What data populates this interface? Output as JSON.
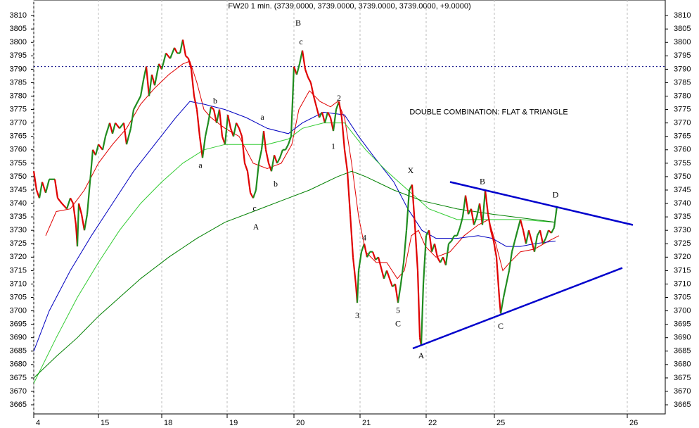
{
  "chart_data": {
    "type": "line",
    "title": "FW20 1 min. (3739.0000, 3739.0000, 3739.0000, 3739.0000, +9.0000)",
    "xlim": [
      48,
      946
    ],
    "ylim": [
      3661.6,
      3815.8
    ],
    "xticks": [
      {
        "value": 48,
        "label": "4"
      },
      {
        "value": 140,
        "label": "15"
      },
      {
        "value": 230,
        "label": "18"
      },
      {
        "value": 323,
        "label": "19"
      },
      {
        "value": 418,
        "label": "20"
      },
      {
        "value": 512,
        "label": "21"
      },
      {
        "value": 606,
        "label": "22"
      },
      {
        "value": 703,
        "label": "25"
      },
      {
        "value": 892,
        "label": "26"
      }
    ],
    "yticks": [
      3665,
      3670,
      3675,
      3680,
      3685,
      3690,
      3695,
      3700,
      3705,
      3710,
      3715,
      3720,
      3725,
      3730,
      3735,
      3740,
      3745,
      3750,
      3755,
      3760,
      3765,
      3770,
      3775,
      3780,
      3785,
      3790,
      3795,
      3800,
      3805,
      3810
    ],
    "grid": true,
    "up_color": "#1f8c1f",
    "down_color": "#e00000",
    "price": {
      "x": [
        48,
        52,
        56,
        60,
        65,
        70,
        78,
        82,
        88,
        95,
        100,
        104,
        108,
        110,
        112,
        116,
        120,
        124,
        128,
        132,
        136,
        140,
        146,
        150,
        156,
        160,
        164,
        170,
        176,
        180,
        186,
        190,
        196,
        200,
        204,
        208,
        212,
        216,
        220,
        226,
        230,
        236,
        242,
        248,
        252,
        256,
        260,
        264,
        268,
        272,
        276,
        280,
        284,
        288,
        292,
        296,
        300,
        304,
        308,
        312,
        316,
        320,
        324,
        328,
        332,
        336,
        340,
        344,
        348,
        352,
        356,
        360,
        364,
        368,
        372,
        375,
        378,
        382,
        386,
        390,
        394,
        398,
        402,
        406,
        410,
        414,
        418,
        422,
        426,
        430,
        434,
        438,
        442,
        446,
        450,
        454,
        458,
        462,
        466,
        470,
        474,
        478,
        482,
        486,
        490,
        494,
        498,
        502,
        506,
        508,
        510,
        514,
        518,
        522,
        526,
        530,
        534,
        538,
        542,
        546,
        550,
        554,
        558,
        562,
        566,
        570,
        574,
        578,
        582,
        586,
        590,
        594,
        597,
        599,
        602,
        606,
        610,
        614,
        618,
        622,
        626,
        630,
        634,
        638,
        642,
        646,
        650,
        654,
        658,
        662,
        666,
        670,
        674,
        678,
        682,
        686,
        690,
        694,
        698,
        702,
        706,
        710,
        712,
        716,
        720,
        724,
        728,
        732,
        736,
        740,
        744,
        748,
        752,
        756,
        760,
        764,
        768,
        772,
        776,
        780,
        784,
        788,
        792
      ],
      "values": [
        3752,
        3745,
        3742,
        3748,
        3744,
        3749,
        3749,
        3742,
        3740,
        3738,
        3742,
        3740,
        3732,
        3724,
        3740,
        3736,
        3730,
        3736,
        3748,
        3760,
        3758,
        3762,
        3760,
        3765,
        3770,
        3766,
        3770,
        3768,
        3770,
        3762,
        3768,
        3775,
        3778,
        3780,
        3786,
        3791,
        3780,
        3788,
        3784,
        3792,
        3790,
        3796,
        3794,
        3798,
        3796,
        3796,
        3801,
        3795,
        3794,
        3790,
        3780,
        3775,
        3765,
        3757,
        3765,
        3770,
        3776,
        3775,
        3770,
        3775,
        3765,
        3762,
        3773,
        3768,
        3765,
        3770,
        3768,
        3765,
        3755,
        3752,
        3744,
        3742,
        3745,
        3755,
        3760,
        3767,
        3760,
        3755,
        3752,
        3758,
        3755,
        3757,
        3760,
        3760,
        3762,
        3765,
        3791,
        3788,
        3792,
        3797,
        3790,
        3787,
        3785,
        3780,
        3776,
        3772,
        3774,
        3770,
        3774,
        3772,
        3767,
        3775,
        3778,
        3772,
        3760,
        3752,
        3736,
        3720,
        3710,
        3703,
        3715,
        3722,
        3725,
        3720,
        3722,
        3722,
        3719,
        3720,
        3716,
        3712,
        3715,
        3712,
        3709,
        3710,
        3703,
        3710,
        3718,
        3730,
        3745,
        3747,
        3732,
        3715,
        3690,
        3687,
        3710,
        3728,
        3730,
        3722,
        3725,
        3720,
        3718,
        3720,
        3717,
        3725,
        3726,
        3728,
        3728,
        3731,
        3735,
        3743,
        3736,
        3738,
        3732,
        3735,
        3740,
        3732,
        3745,
        3736,
        3730,
        3726,
        3720,
        3705,
        3699,
        3705,
        3710,
        3715,
        3722,
        3726,
        3730,
        3734,
        3730,
        3725,
        3730,
        3726,
        3722,
        3728,
        3730,
        3725,
        3727,
        3730,
        3729,
        3731,
        3739
      ]
    },
    "series": [
      {
        "color": "#e00000",
        "x": [
          65,
          80,
          100,
          120,
          140,
          160,
          180,
          200,
          220,
          240,
          260,
          270,
          280,
          290,
          300,
          320,
          340,
          360,
          380,
          400,
          415,
          425,
          440,
          455,
          470,
          480,
          490,
          500,
          510,
          520,
          535,
          550,
          565,
          575,
          585,
          595,
          605,
          620,
          640,
          660,
          680,
          695,
          705,
          715,
          725,
          740,
          760,
          780,
          795
        ],
        "values": [
          3728,
          3737,
          3738,
          3745,
          3755,
          3762,
          3768,
          3777,
          3783,
          3788,
          3792,
          3793,
          3785,
          3775,
          3772,
          3768,
          3765,
          3755,
          3753,
          3755,
          3762,
          3775,
          3782,
          3778,
          3776,
          3778,
          3772,
          3755,
          3735,
          3722,
          3718,
          3718,
          3712,
          3715,
          3728,
          3730,
          3724,
          3720,
          3722,
          3728,
          3732,
          3734,
          3725,
          3715,
          3718,
          3722,
          3723,
          3726,
          3728
        ]
      },
      {
        "color": "#0000c0",
        "x": [
          48,
          70,
          100,
          130,
          160,
          190,
          220,
          250,
          270,
          290,
          320,
          350,
          380,
          410,
          430,
          460,
          490,
          510,
          530,
          560,
          580,
          600,
          620,
          650,
          680,
          700,
          720,
          740,
          760,
          790
        ],
        "values": [
          3685,
          3700,
          3715,
          3728,
          3740,
          3752,
          3762,
          3772,
          3778,
          3777,
          3775,
          3772,
          3768,
          3766,
          3770,
          3774,
          3773,
          3765,
          3758,
          3748,
          3738,
          3730,
          3727,
          3727,
          3728,
          3727,
          3724,
          3724,
          3725,
          3726
        ]
      },
      {
        "color": "#33cc33",
        "x": [
          48,
          80,
          110,
          140,
          170,
          200,
          230,
          260,
          290,
          320,
          350,
          380,
          410,
          430,
          460,
          490,
          520,
          550,
          580,
          610,
          650,
          700,
          740,
          790
        ],
        "values": [
          3673,
          3690,
          3705,
          3718,
          3730,
          3740,
          3748,
          3755,
          3760,
          3762,
          3762,
          3762,
          3764,
          3768,
          3770,
          3770,
          3760,
          3752,
          3745,
          3738,
          3734,
          3734,
          3734,
          3733
        ]
      },
      {
        "color": "#008000",
        "x": [
          48,
          80,
          110,
          140,
          170,
          200,
          240,
          280,
          320,
          360,
          400,
          440,
          480,
          500,
          520,
          560,
          600,
          650,
          700,
          790
        ],
        "values": [
          3675,
          3683,
          3690,
          3698,
          3705,
          3712,
          3720,
          3727,
          3733,
          3737,
          3741,
          3745,
          3750,
          3752,
          3750,
          3745,
          3741,
          3738,
          3736,
          3733
        ]
      }
    ],
    "hline": 3791,
    "trendlines": [
      {
        "color": "#0000cc",
        "x": [
          640,
          900
        ],
        "values": [
          3748,
          3732
        ]
      },
      {
        "color": "#0000cc",
        "x": [
          587,
          885
        ],
        "values": [
          3686,
          3716
        ]
      }
    ],
    "annotations": [
      {
        "text": "B",
        "x": 424,
        "y": 3807,
        "color": "#e020e0"
      },
      {
        "text": "c",
        "x": 428,
        "y": 3800,
        "color": "#0000a0"
      },
      {
        "text": "b",
        "x": 306,
        "y": 3778,
        "color": "#0000a0"
      },
      {
        "text": "a",
        "x": 285,
        "y": 3754,
        "color": "#0000a0"
      },
      {
        "text": "a",
        "x": 373,
        "y": 3772,
        "color": "#0000a0"
      },
      {
        "text": "b",
        "x": 392,
        "y": 3747,
        "color": "#0000a0"
      },
      {
        "text": "c",
        "x": 362,
        "y": 3738,
        "color": "#0000a0"
      },
      {
        "text": "A",
        "x": 364,
        "y": 3731,
        "color": "#e020e0"
      },
      {
        "text": "2",
        "x": 482,
        "y": 3779,
        "color": "#0000a0"
      },
      {
        "text": "1",
        "x": 474,
        "y": 3761,
        "color": "#0000a0"
      },
      {
        "text": "4",
        "x": 518,
        "y": 3727,
        "color": "#0000a0"
      },
      {
        "text": "3",
        "x": 508,
        "y": 3698,
        "color": "#0000a0"
      },
      {
        "text": "5",
        "x": 566,
        "y": 3700,
        "color": "#0000a0"
      },
      {
        "text": "C",
        "x": 566,
        "y": 3695,
        "color": "#e020e0"
      },
      {
        "text": "X",
        "x": 584,
        "y": 3752,
        "color": "#e020e0"
      },
      {
        "text": "A",
        "x": 599,
        "y": 3683,
        "color": "#e020e0"
      },
      {
        "text": "B",
        "x": 686,
        "y": 3748,
        "color": "#e020e0"
      },
      {
        "text": "C",
        "x": 712,
        "y": 3694,
        "color": "#e020e0"
      },
      {
        "text": "D",
        "x": 790,
        "y": 3743,
        "color": "#e020e0"
      },
      {
        "text": "DOUBLE COMBINATION: FLAT & TRIANGLE",
        "x": 695,
        "y": 3774,
        "color": "#0000cc"
      }
    ]
  }
}
